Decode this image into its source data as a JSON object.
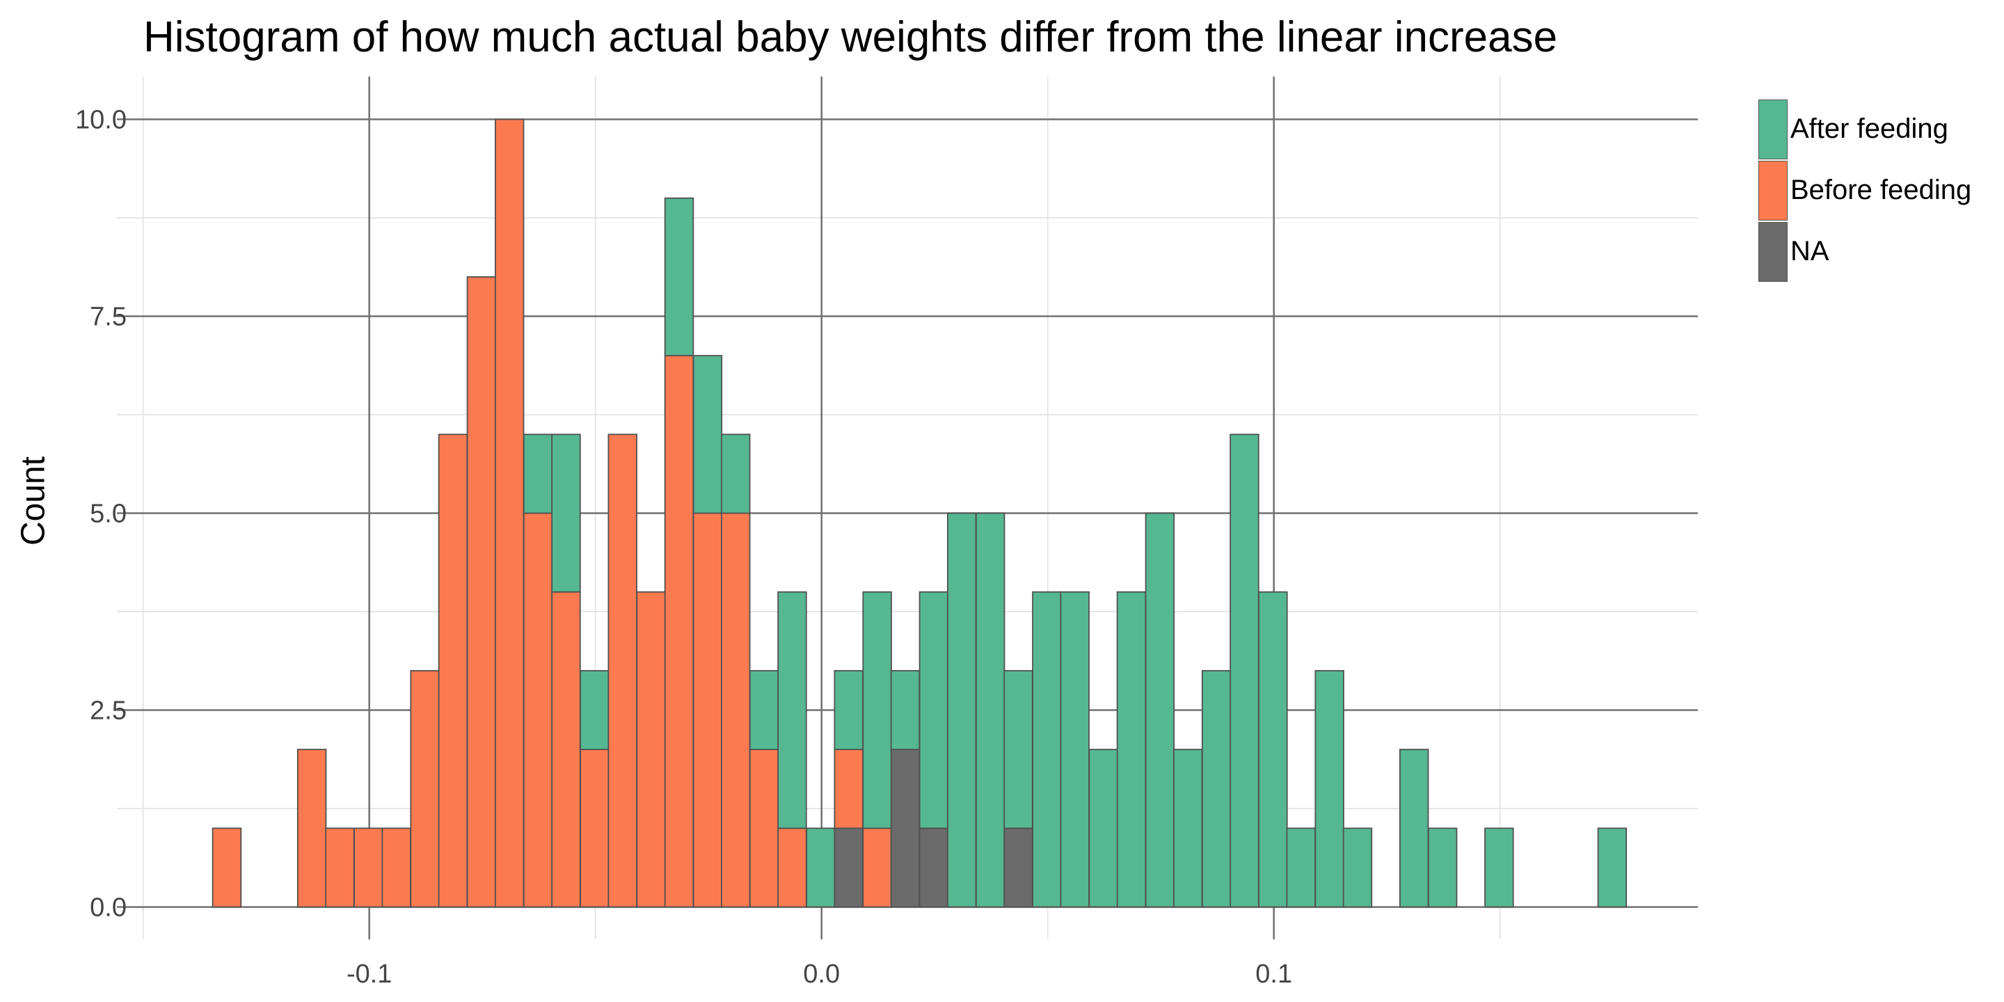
{
  "chart_data": {
    "type": "bar",
    "stacked": true,
    "title": "Histogram of how much actual baby weights differ from the linear increase",
    "xlabel": "",
    "ylabel": "Count",
    "xlim": [
      -0.15,
      0.195
    ],
    "ylim": [
      0,
      10
    ],
    "x_ticks": [
      "-0.1",
      "0.0",
      "0.1"
    ],
    "x_tick_values": [
      -0.1,
      0.0,
      0.1
    ],
    "y_ticks": [
      "0.0",
      "2.5",
      "5.0",
      "7.5",
      "10.0"
    ],
    "y_tick_values": [
      0,
      2.5,
      5.0,
      7.5,
      10.0
    ],
    "grid": true,
    "legend_position": "right",
    "bin_width": 0.00625,
    "bin_centers": [
      -0.1315,
      -0.1252,
      -0.119,
      -0.1127,
      -0.1065,
      -0.1002,
      -0.094,
      -0.0877,
      -0.0815,
      -0.0752,
      -0.069,
      -0.0627,
      -0.0565,
      -0.0502,
      -0.044,
      -0.0377,
      -0.0315,
      -0.0252,
      -0.019,
      -0.0127,
      -0.0065,
      -0.0002,
      0.006,
      0.0123,
      0.0185,
      0.0248,
      0.031,
      0.0373,
      0.0435,
      0.0498,
      0.056,
      0.0623,
      0.0685,
      0.0748,
      0.081,
      0.0873,
      0.0935,
      0.0998,
      0.106,
      0.1123,
      0.1185,
      0.1248,
      0.131,
      0.1373,
      0.1435,
      0.1498,
      0.156,
      0.1623,
      0.1685,
      0.1748
    ],
    "series": [
      {
        "name": "NA",
        "color": "#6b6b6b",
        "values": [
          0,
          0,
          0,
          0,
          0,
          0,
          0,
          0,
          0,
          0,
          0,
          0,
          0,
          0,
          0,
          0,
          0,
          0,
          0,
          0,
          0,
          0,
          1,
          0,
          2,
          1,
          0,
          0,
          1,
          0,
          0,
          0,
          0,
          0,
          0,
          0,
          0,
          0,
          0,
          0,
          0,
          0,
          0,
          0,
          0,
          0,
          0,
          0,
          0,
          0
        ]
      },
      {
        "name": "Before feeding",
        "color": "#fc7a50",
        "values": [
          1,
          0,
          0,
          2,
          1,
          1,
          1,
          3,
          6,
          8,
          10,
          5,
          4,
          2,
          6,
          4,
          7,
          5,
          5,
          2,
          1,
          0,
          1,
          1,
          0,
          0,
          0,
          0,
          0,
          0,
          0,
          0,
          0,
          0,
          0,
          0,
          0,
          0,
          0,
          0,
          0,
          0,
          0,
          0,
          0,
          0,
          0,
          0,
          0,
          0
        ]
      },
      {
        "name": "After feeding",
        "color": "#55b892",
        "values": [
          0,
          0,
          0,
          0,
          0,
          0,
          0,
          0,
          0,
          0,
          0,
          1,
          2,
          1,
          0,
          0,
          2,
          2,
          1,
          1,
          3,
          1,
          1,
          3,
          1,
          3,
          5,
          5,
          2,
          4,
          4,
          2,
          4,
          5,
          2,
          3,
          6,
          4,
          1,
          3,
          1,
          0,
          2,
          1,
          0,
          1,
          0,
          0,
          0,
          1
        ]
      }
    ],
    "legend_order": [
      "After feeding",
      "Before feeding",
      "NA"
    ]
  },
  "colors": {
    "after_feeding": "#55b892",
    "before_feeding": "#fc7a50",
    "na": "#6b6b6b",
    "major_grid": "#707070",
    "minor_grid": "#e6e6e6",
    "bar_outline": "#505050"
  }
}
